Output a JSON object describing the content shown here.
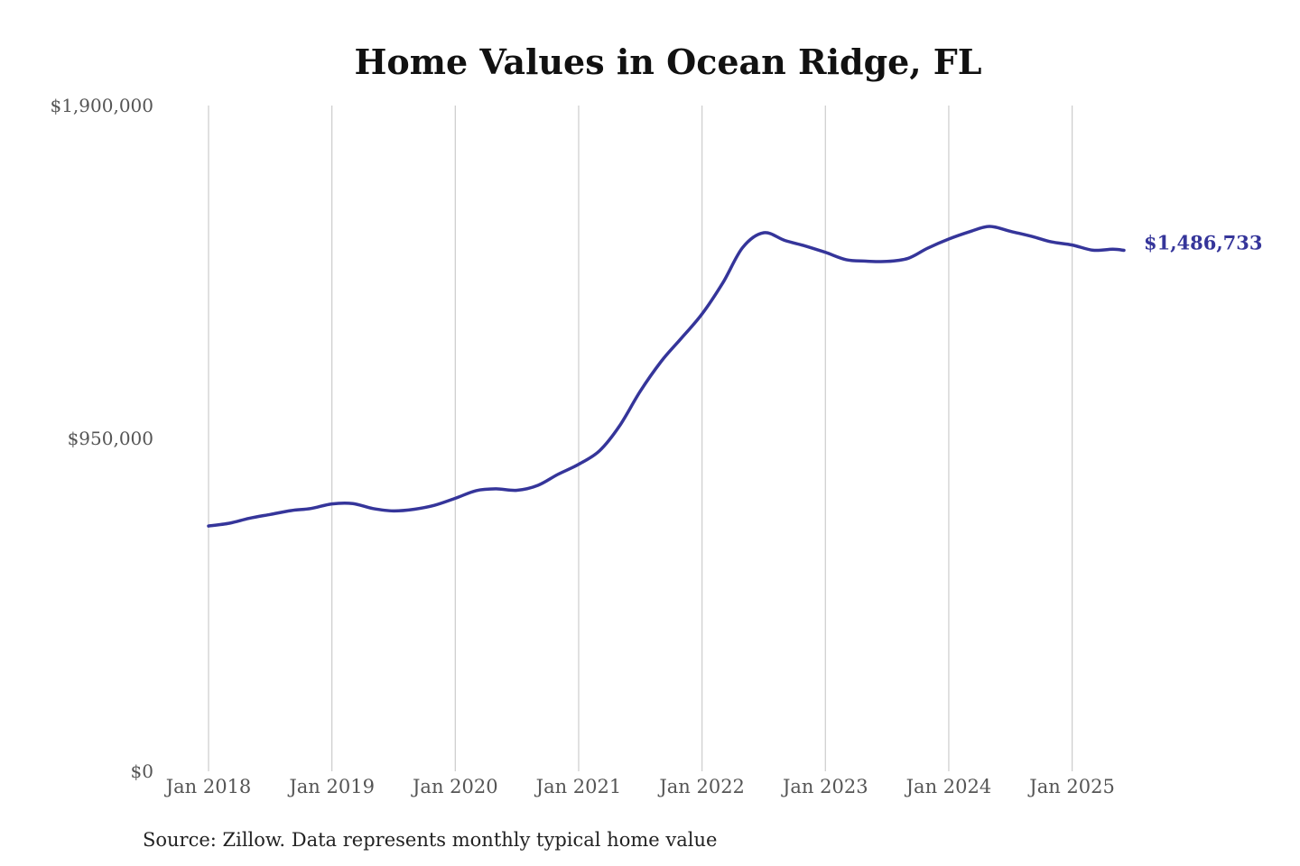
{
  "chart_data": {
    "type": "line",
    "title": "Home Values in Ocean Ridge, FL",
    "source": "Source: Zillow. Data represents monthly typical home value",
    "ylim": [
      0,
      1900000
    ],
    "y_ticks": [
      {
        "value": 0,
        "label": "$0"
      },
      {
        "value": 950000,
        "label": "$950,000"
      },
      {
        "value": 1900000,
        "label": "$1,900,000"
      }
    ],
    "x_ticks": [
      {
        "value": 2018.0,
        "label": "Jan 2018"
      },
      {
        "value": 2019.0,
        "label": "Jan 2019"
      },
      {
        "value": 2020.0,
        "label": "Jan 2020"
      },
      {
        "value": 2021.0,
        "label": "Jan 2021"
      },
      {
        "value": 2022.0,
        "label": "Jan 2022"
      },
      {
        "value": 2023.0,
        "label": "Jan 2023"
      },
      {
        "value": 2024.0,
        "label": "Jan 2024"
      },
      {
        "value": 2025.0,
        "label": "Jan 2025"
      }
    ],
    "xlim": [
      2018.0,
      2025.42
    ],
    "grid": "vertical",
    "line_color": "#35359a",
    "end_label": "$1,486,733",
    "series": [
      {
        "points": [
          [
            2018.0,
            700000
          ],
          [
            2018.17,
            708000
          ],
          [
            2018.33,
            722000
          ],
          [
            2018.5,
            733000
          ],
          [
            2018.67,
            744000
          ],
          [
            2018.83,
            750000
          ],
          [
            2019.0,
            763000
          ],
          [
            2019.17,
            764000
          ],
          [
            2019.33,
            750000
          ],
          [
            2019.5,
            743000
          ],
          [
            2019.67,
            748000
          ],
          [
            2019.83,
            759000
          ],
          [
            2020.0,
            779000
          ],
          [
            2020.17,
            801000
          ],
          [
            2020.33,
            806000
          ],
          [
            2020.5,
            802000
          ],
          [
            2020.67,
            816000
          ],
          [
            2020.83,
            847000
          ],
          [
            2021.0,
            876000
          ],
          [
            2021.17,
            915000
          ],
          [
            2021.33,
            985000
          ],
          [
            2021.5,
            1085000
          ],
          [
            2021.67,
            1170000
          ],
          [
            2021.83,
            1235000
          ],
          [
            2022.0,
            1305000
          ],
          [
            2022.17,
            1395000
          ],
          [
            2022.33,
            1495000
          ],
          [
            2022.5,
            1537000
          ],
          [
            2022.67,
            1515000
          ],
          [
            2022.83,
            1500000
          ],
          [
            2023.0,
            1481000
          ],
          [
            2023.17,
            1460000
          ],
          [
            2023.33,
            1456000
          ],
          [
            2023.5,
            1455000
          ],
          [
            2023.67,
            1464000
          ],
          [
            2023.83,
            1493000
          ],
          [
            2024.0,
            1519000
          ],
          [
            2024.17,
            1540000
          ],
          [
            2024.33,
            1555000
          ],
          [
            2024.5,
            1541000
          ],
          [
            2024.67,
            1527000
          ],
          [
            2024.83,
            1511000
          ],
          [
            2025.0,
            1502000
          ],
          [
            2025.17,
            1487000
          ],
          [
            2025.33,
            1490000
          ],
          [
            2025.42,
            1486733
          ]
        ]
      }
    ]
  }
}
